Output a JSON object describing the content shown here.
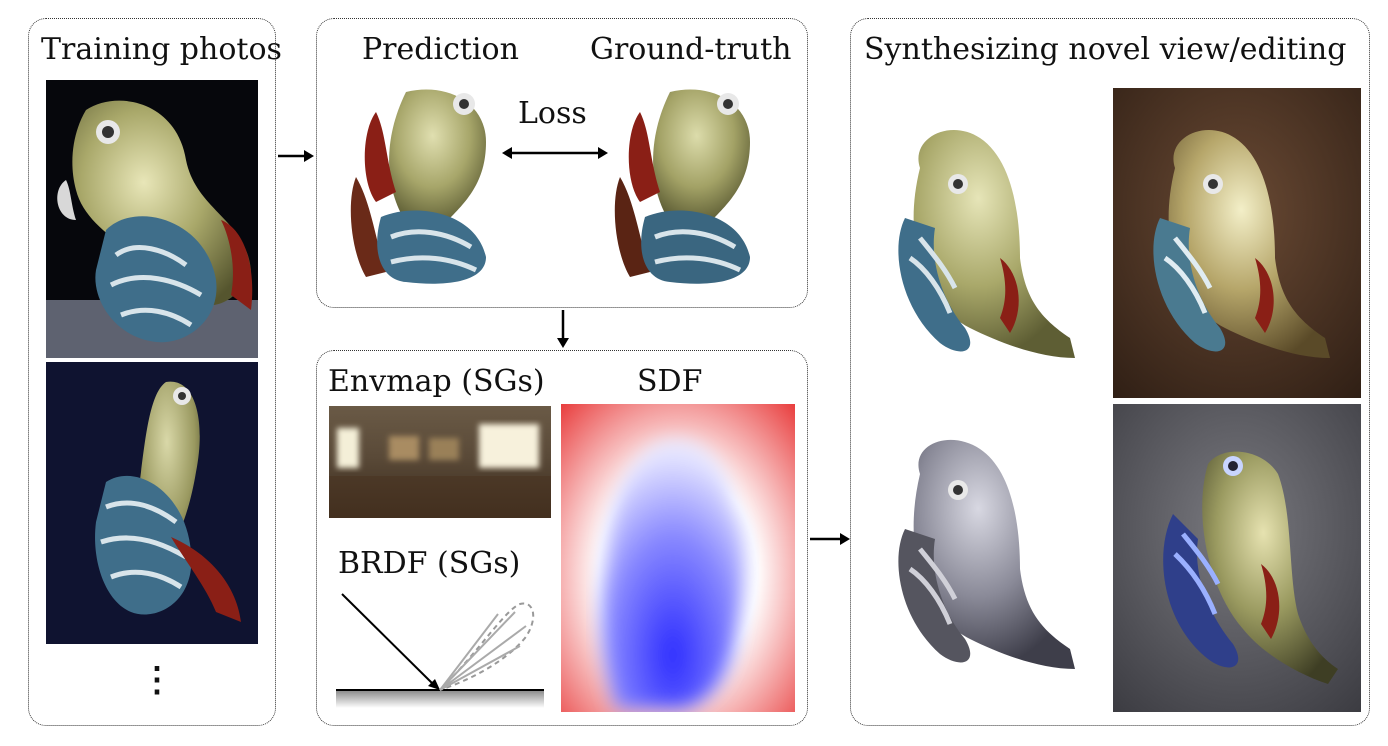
{
  "panels": {
    "training": {
      "title": "Training photos",
      "more_marker": "⋮"
    },
    "loss": {
      "prediction_label": "Prediction",
      "groundtruth_label": "Ground-truth",
      "loss_label": "Loss"
    },
    "representation": {
      "envmap_label": "Envmap (SGs)",
      "sdf_label": "SDF",
      "brdf_label": "BRDF (SGs)"
    },
    "synthesis": {
      "title": "Synthesizing novel view/editing"
    }
  },
  "colors": {
    "sdf_outside": "#e83a3a",
    "sdf_inside": "#2b2bff",
    "photo_dark_bg": "#0f1330",
    "fish_body": "#a9a86a",
    "waves_blue": "#3f6e8a",
    "fin_red": "#8a1f16"
  }
}
